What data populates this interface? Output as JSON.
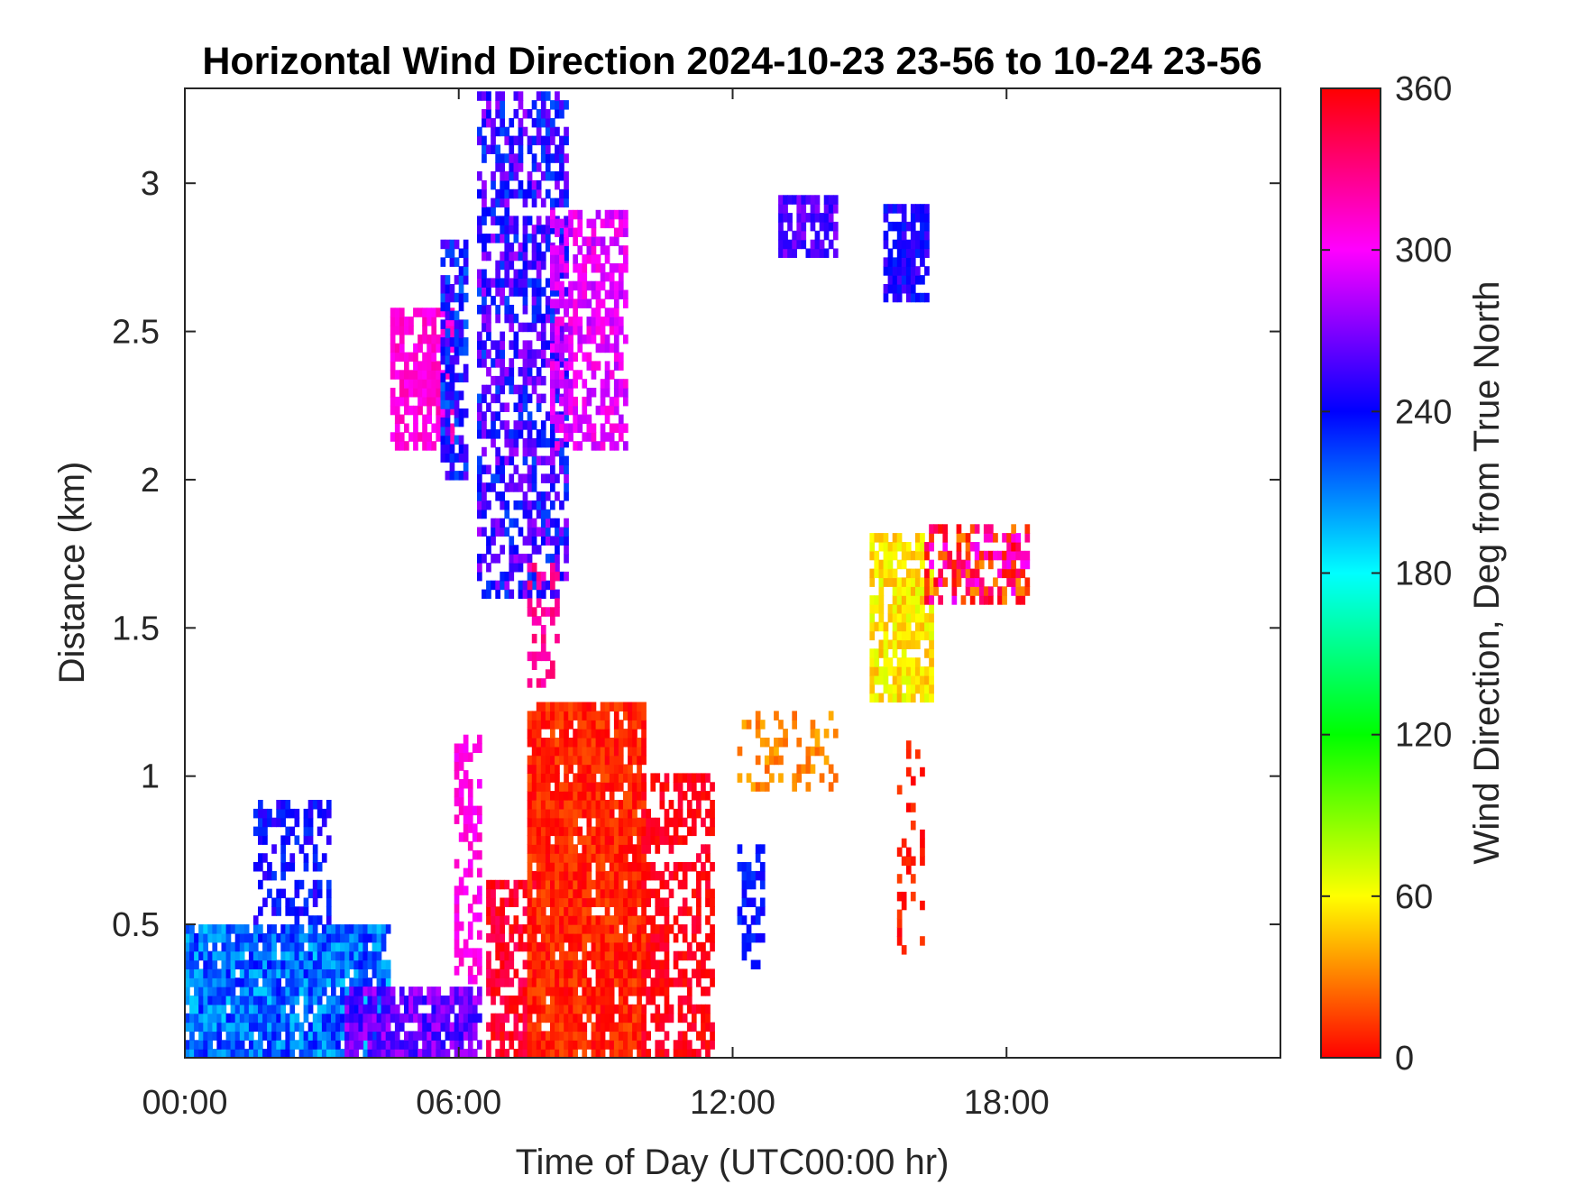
{
  "chart_data": {
    "type": "heatmap",
    "title": "Horizontal Wind Direction 2024-10-23 23-56 to 10-24 23-56",
    "xlabel": "Time of Day (UTC00:00 hr)",
    "ylabel": "Distance (km)",
    "xlim": [
      0,
      24
    ],
    "ylim": [
      0.05,
      3.32
    ],
    "x_ticks": [
      {
        "value": 0,
        "label": "00:00"
      },
      {
        "value": 6,
        "label": "06:00"
      },
      {
        "value": 12,
        "label": "12:00"
      },
      {
        "value": 18,
        "label": "18:00"
      }
    ],
    "y_ticks": [
      {
        "value": 0.5,
        "label": "0.5"
      },
      {
        "value": 1,
        "label": "1"
      },
      {
        "value": 1.5,
        "label": "1.5"
      },
      {
        "value": 2,
        "label": "2"
      },
      {
        "value": 2.5,
        "label": "2.5"
      },
      {
        "value": 3,
        "label": "3"
      }
    ],
    "colorbar": {
      "label": "Wind Direction, Deg from True North",
      "range": [
        0,
        360
      ],
      "ticks": [
        {
          "value": 0,
          "label": "0"
        },
        {
          "value": 60,
          "label": "60"
        },
        {
          "value": 120,
          "label": "120"
        },
        {
          "value": 180,
          "label": "180"
        },
        {
          "value": 240,
          "label": "240"
        },
        {
          "value": 300,
          "label": "300"
        },
        {
          "value": 360,
          "label": "360"
        }
      ],
      "colormap": "hsv"
    },
    "regions": [
      {
        "name": "surface-blue",
        "x": [
          0.0,
          4.5
        ],
        "y": [
          0.05,
          0.5
        ],
        "dir": 215,
        "dir_spread": 25,
        "density": 0.9
      },
      {
        "name": "surface-blue-sparse",
        "x": [
          1.5,
          3.2
        ],
        "y": [
          0.5,
          0.9
        ],
        "dir": 240,
        "dir_spread": 15,
        "density": 0.45
      },
      {
        "name": "surface-purple",
        "x": [
          3.5,
          6.4
        ],
        "y": [
          0.05,
          0.27
        ],
        "dir": 265,
        "dir_spread": 20,
        "density": 0.85
      },
      {
        "name": "morning-magenta-column",
        "x": [
          5.9,
          6.4
        ],
        "y": [
          0.3,
          1.15
        ],
        "dir": 305,
        "dir_spread": 10,
        "density": 0.55
      },
      {
        "name": "morning-red-low",
        "x": [
          6.6,
          7.6
        ],
        "y": [
          0.05,
          0.65
        ],
        "dir": 350,
        "dir_spread": 15,
        "density": 0.6
      },
      {
        "name": "midday-red-core",
        "x": [
          7.5,
          10.0
        ],
        "y": [
          0.05,
          1.25
        ],
        "dir": 8,
        "dir_spread": 12,
        "density": 0.9
      },
      {
        "name": "midday-red-east",
        "x": [
          10.0,
          11.5
        ],
        "y": [
          0.05,
          1.0
        ],
        "dir": 355,
        "dir_spread": 10,
        "density": 0.55
      },
      {
        "name": "noon-blue-streak",
        "x": [
          12.1,
          12.6
        ],
        "y": [
          0.35,
          0.75
        ],
        "dir": 235,
        "dir_spread": 10,
        "density": 0.5
      },
      {
        "name": "pink-plume-2.3km",
        "x": [
          4.5,
          5.8
        ],
        "y": [
          2.1,
          2.55
        ],
        "dir": 310,
        "dir_spread": 10,
        "density": 0.75
      },
      {
        "name": "blue-column-2.5km",
        "x": [
          5.6,
          6.1
        ],
        "y": [
          2.0,
          2.8
        ],
        "dir": 240,
        "dir_spread": 25,
        "density": 0.6
      },
      {
        "name": "rising-blue-purple",
        "x": [
          6.4,
          8.3
        ],
        "y": [
          1.6,
          3.3
        ],
        "dir": 250,
        "dir_spread": 30,
        "density": 0.6
      },
      {
        "name": "magenta-upper",
        "x": [
          8.0,
          9.6
        ],
        "y": [
          2.1,
          2.9
        ],
        "dir": 295,
        "dir_spread": 15,
        "density": 0.6
      },
      {
        "name": "magenta-mid",
        "x": [
          7.5,
          8.1
        ],
        "y": [
          1.3,
          1.7
        ],
        "dir": 325,
        "dir_spread": 10,
        "density": 0.5
      },
      {
        "name": "upper-purple-3km",
        "x": [
          13.0,
          14.2
        ],
        "y": [
          2.75,
          2.95
        ],
        "dir": 260,
        "dir_spread": 15,
        "density": 0.7
      },
      {
        "name": "upper-blue-3km",
        "x": [
          15.3,
          16.3
        ],
        "y": [
          2.6,
          2.92
        ],
        "dir": 245,
        "dir_spread": 15,
        "density": 0.75
      },
      {
        "name": "afternoon-yellow",
        "x": [
          15.0,
          16.4
        ],
        "y": [
          1.25,
          1.8
        ],
        "dir": 55,
        "dir_spread": 15,
        "density": 0.8
      },
      {
        "name": "afternoon-mixed-1.7km",
        "x": [
          16.2,
          18.5
        ],
        "y": [
          1.58,
          1.85
        ],
        "dir": 345,
        "dir_spread": 50,
        "density": 0.6
      },
      {
        "name": "afternoon-orange-1km",
        "x": [
          12.1,
          14.2
        ],
        "y": [
          0.95,
          1.2
        ],
        "dir": 32,
        "dir_spread": 10,
        "density": 0.3
      },
      {
        "name": "afternoon-red-column",
        "x": [
          15.6,
          16.2
        ],
        "y": [
          0.4,
          1.15
        ],
        "dir": 5,
        "dir_spread": 10,
        "density": 0.3
      }
    ],
    "grid": false
  }
}
